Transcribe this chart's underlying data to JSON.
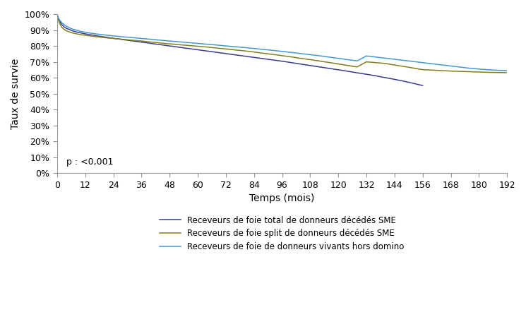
{
  "title": "",
  "xlabel": "Temps (mois)",
  "ylabel": "Taux de survie",
  "annotation": "p : <0,001",
  "xlim": [
    0,
    192
  ],
  "ylim": [
    0.0,
    1.0
  ],
  "xticks": [
    0,
    12,
    24,
    36,
    48,
    60,
    72,
    84,
    96,
    108,
    120,
    132,
    144,
    156,
    168,
    180,
    192
  ],
  "yticks": [
    0.0,
    0.1,
    0.2,
    0.3,
    0.4,
    0.5,
    0.6,
    0.7,
    0.8,
    0.9,
    1.0
  ],
  "ytick_labels": [
    "0%",
    "10%",
    "20%",
    "30%",
    "40%",
    "50%",
    "60%",
    "70%",
    "80%",
    "90%",
    "100%"
  ],
  "background_color": "#ffffff",
  "legend_entries": [
    "Receveurs de foie total de donneurs décédés SME",
    "Receveurs de foie split de donneurs décédés SME",
    "Receveurs de foie de donneurs vivants hors domino"
  ],
  "curve_foie_total": {
    "color": "#3c3c8c",
    "x": [
      0,
      0.5,
      1,
      1.5,
      2,
      3,
      4,
      5,
      6,
      7,
      8,
      9,
      10,
      11,
      12,
      14,
      16,
      18,
      21,
      24,
      27,
      30,
      33,
      36,
      39,
      42,
      45,
      48,
      51,
      54,
      57,
      60,
      63,
      66,
      69,
      72,
      76,
      80,
      84,
      88,
      92,
      96,
      100,
      104,
      108,
      112,
      116,
      120,
      124,
      128,
      132,
      136,
      140,
      144,
      148,
      152,
      156
    ],
    "y": [
      1.0,
      0.975,
      0.96,
      0.945,
      0.935,
      0.92,
      0.91,
      0.905,
      0.898,
      0.893,
      0.889,
      0.885,
      0.882,
      0.879,
      0.876,
      0.871,
      0.866,
      0.861,
      0.855,
      0.848,
      0.842,
      0.836,
      0.83,
      0.824,
      0.818,
      0.812,
      0.806,
      0.8,
      0.794,
      0.788,
      0.782,
      0.776,
      0.77,
      0.764,
      0.758,
      0.752,
      0.744,
      0.736,
      0.728,
      0.72,
      0.712,
      0.704,
      0.695,
      0.686,
      0.677,
      0.668,
      0.659,
      0.65,
      0.641,
      0.631,
      0.622,
      0.612,
      0.601,
      0.59,
      0.578,
      0.565,
      0.551
    ]
  },
  "curve_foie_split": {
    "color": "#808020",
    "x": [
      0,
      0.5,
      1,
      1.5,
      2,
      3,
      4,
      5,
      6,
      7,
      8,
      9,
      10,
      11,
      12,
      14,
      16,
      18,
      21,
      24,
      27,
      30,
      33,
      36,
      39,
      42,
      45,
      48,
      52,
      56,
      60,
      64,
      68,
      72,
      76,
      80,
      84,
      88,
      92,
      96,
      100,
      104,
      108,
      112,
      116,
      120,
      124,
      128,
      132,
      136,
      140,
      144,
      148,
      152,
      156,
      160,
      164,
      168,
      172,
      176,
      180,
      184,
      188,
      192
    ],
    "y": [
      1.0,
      0.965,
      0.945,
      0.93,
      0.918,
      0.904,
      0.895,
      0.889,
      0.884,
      0.88,
      0.877,
      0.874,
      0.871,
      0.869,
      0.867,
      0.863,
      0.859,
      0.856,
      0.851,
      0.847,
      0.843,
      0.839,
      0.835,
      0.831,
      0.826,
      0.822,
      0.817,
      0.813,
      0.808,
      0.803,
      0.798,
      0.793,
      0.787,
      0.781,
      0.775,
      0.769,
      0.762,
      0.754,
      0.747,
      0.739,
      0.731,
      0.722,
      0.714,
      0.705,
      0.696,
      0.687,
      0.677,
      0.668,
      0.7,
      0.695,
      0.69,
      0.68,
      0.671,
      0.661,
      0.651,
      0.648,
      0.645,
      0.642,
      0.64,
      0.638,
      0.636,
      0.634,
      0.633,
      0.632
    ]
  },
  "curve_foie_vivant": {
    "color": "#4499cc",
    "x": [
      0,
      0.5,
      1,
      1.5,
      2,
      3,
      4,
      5,
      6,
      7,
      8,
      9,
      10,
      11,
      12,
      14,
      16,
      18,
      21,
      24,
      27,
      30,
      33,
      36,
      39,
      42,
      45,
      48,
      52,
      56,
      60,
      64,
      68,
      72,
      76,
      80,
      84,
      88,
      92,
      96,
      100,
      104,
      108,
      112,
      116,
      120,
      124,
      128,
      132,
      136,
      140,
      144,
      148,
      152,
      156,
      160,
      164,
      168,
      172,
      176,
      180,
      184,
      188,
      192
    ],
    "y": [
      1.0,
      0.978,
      0.965,
      0.955,
      0.947,
      0.934,
      0.924,
      0.916,
      0.909,
      0.904,
      0.9,
      0.896,
      0.892,
      0.889,
      0.886,
      0.881,
      0.877,
      0.873,
      0.868,
      0.863,
      0.859,
      0.855,
      0.851,
      0.847,
      0.843,
      0.839,
      0.835,
      0.831,
      0.826,
      0.821,
      0.816,
      0.811,
      0.806,
      0.8,
      0.795,
      0.79,
      0.784,
      0.778,
      0.772,
      0.766,
      0.759,
      0.752,
      0.745,
      0.738,
      0.73,
      0.722,
      0.714,
      0.706,
      0.737,
      0.73,
      0.723,
      0.716,
      0.709,
      0.702,
      0.695,
      0.688,
      0.681,
      0.674,
      0.667,
      0.66,
      0.655,
      0.65,
      0.647,
      0.645
    ]
  }
}
